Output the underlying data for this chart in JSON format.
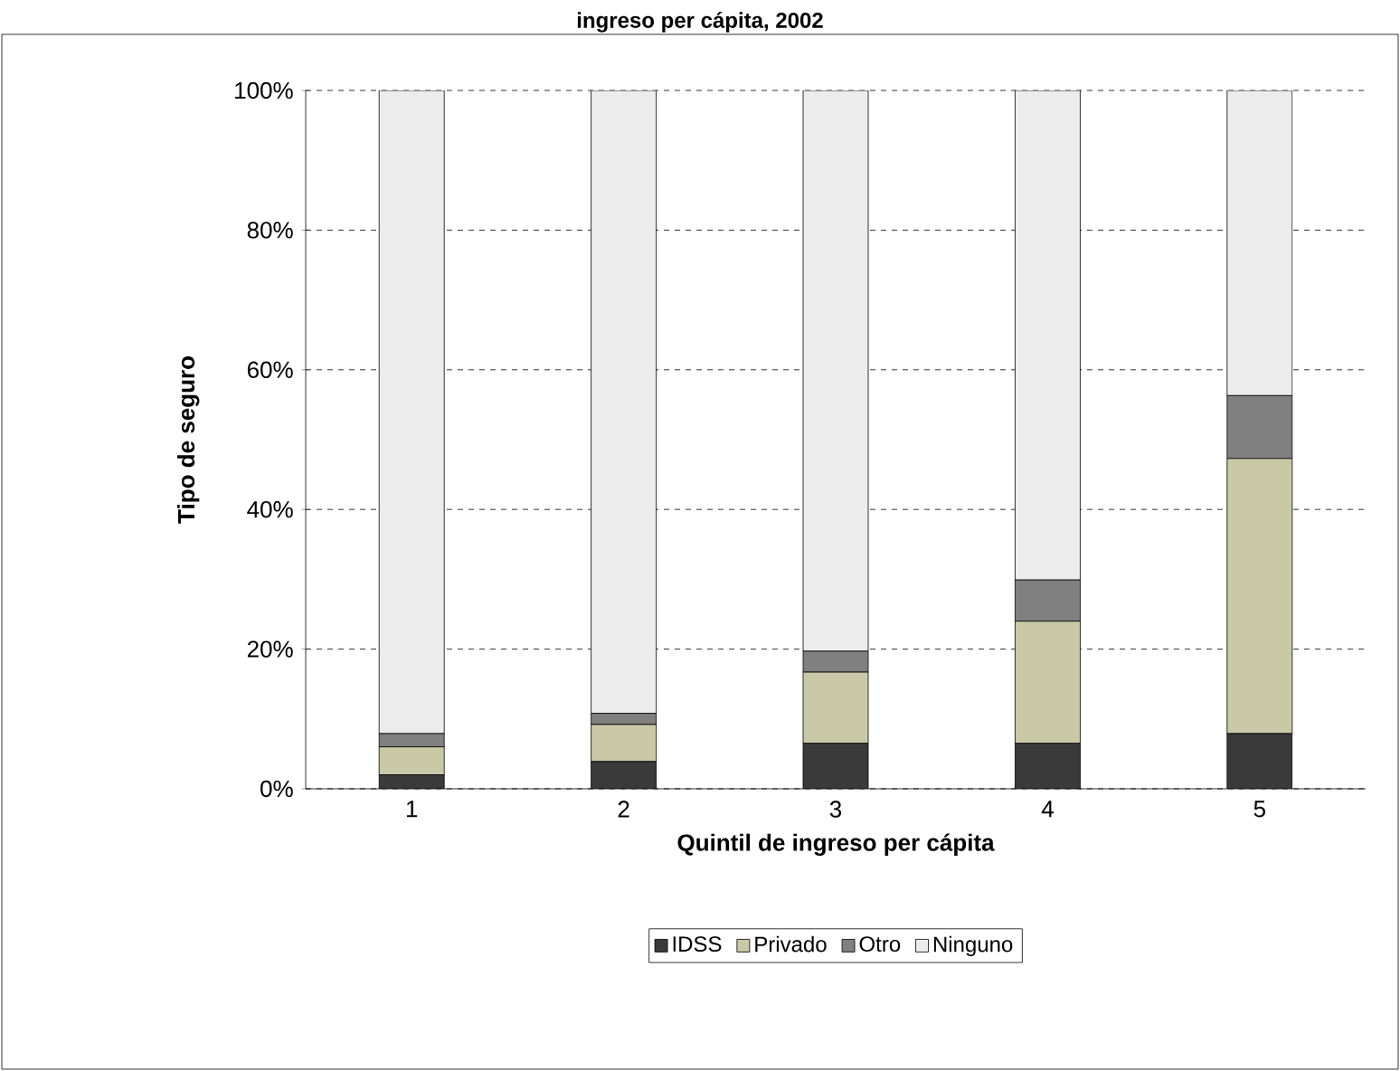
{
  "chart_data": {
    "type": "bar",
    "stacked": true,
    "title": "ingreso per cápita, 2002",
    "xlabel": "Quintil de ingreso per cápita",
    "ylabel": "Tipo de seguro",
    "categories": [
      "1",
      "2",
      "3",
      "4",
      "5"
    ],
    "series": [
      {
        "name": "IDSS",
        "color": "#3a3a3a",
        "values": [
          2.0,
          3.9,
          6.5,
          6.5,
          7.9
        ]
      },
      {
        "name": "Privado",
        "color": "#c9c9a8",
        "values": [
          4.0,
          5.3,
          10.2,
          17.5,
          39.4
        ]
      },
      {
        "name": "Otro",
        "color": "#808080",
        "values": [
          1.9,
          1.6,
          3.0,
          5.9,
          9.0
        ]
      },
      {
        "name": "Ninguno",
        "color": "#ececec",
        "values": [
          92.1,
          89.2,
          80.3,
          70.1,
          43.7
        ]
      }
    ],
    "ylim": [
      0,
      100
    ],
    "yticks": [
      {
        "value": 0,
        "label": "0%"
      },
      {
        "value": 20,
        "label": "20%"
      },
      {
        "value": 40,
        "label": "40%"
      },
      {
        "value": 60,
        "label": "60%"
      },
      {
        "value": 80,
        "label": "80%"
      },
      {
        "value": 100,
        "label": "100%"
      }
    ],
    "grid": "y",
    "legend": "bottom"
  }
}
